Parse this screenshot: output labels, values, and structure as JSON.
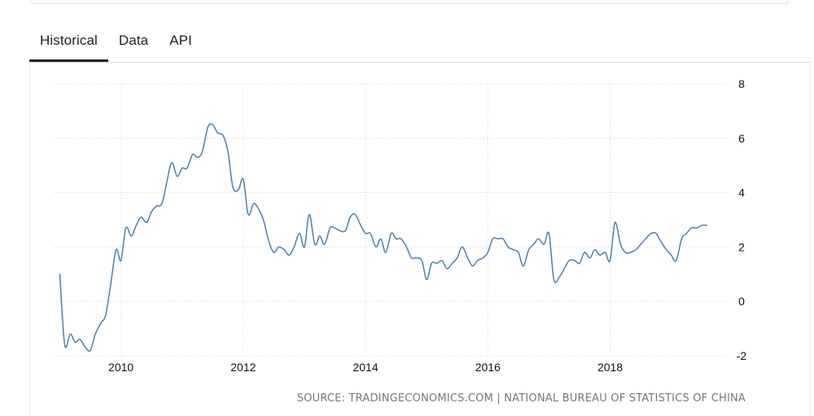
{
  "tabs": [
    {
      "label": "Historical",
      "active": true
    },
    {
      "label": "Data",
      "active": false
    },
    {
      "label": "API",
      "active": false
    }
  ],
  "source": "SOURCE: TRADINGECONOMICS.COM | NATIONAL BUREAU OF STATISTICS OF CHINA",
  "colors": {
    "line": "#4a7fb0",
    "grid": "#e6e6e6",
    "tab_active": "#222222"
  },
  "chart_data": {
    "type": "line",
    "title": "",
    "xlabel": "",
    "ylabel": "",
    "xlim": [
      2008.9,
      2019.95
    ],
    "ylim": [
      -2,
      8
    ],
    "x_ticks": [
      2010,
      2012,
      2014,
      2016,
      2018
    ],
    "y_ticks": [
      8,
      6,
      4,
      2,
      0,
      -2
    ],
    "grid": true,
    "y_axis_position": "right",
    "series": [
      {
        "values": [
          [
            2009.0,
            1.0
          ],
          [
            2009.08,
            -1.6
          ],
          [
            2009.17,
            -1.2
          ],
          [
            2009.25,
            -1.5
          ],
          [
            2009.33,
            -1.4
          ],
          [
            2009.42,
            -1.7
          ],
          [
            2009.5,
            -1.8
          ],
          [
            2009.58,
            -1.2
          ],
          [
            2009.67,
            -0.8
          ],
          [
            2009.75,
            -0.5
          ],
          [
            2009.83,
            0.6
          ],
          [
            2009.92,
            1.9
          ],
          [
            2010.0,
            1.5
          ],
          [
            2010.08,
            2.7
          ],
          [
            2010.17,
            2.4
          ],
          [
            2010.25,
            2.8
          ],
          [
            2010.33,
            3.1
          ],
          [
            2010.42,
            2.9
          ],
          [
            2010.5,
            3.3
          ],
          [
            2010.58,
            3.5
          ],
          [
            2010.67,
            3.6
          ],
          [
            2010.75,
            4.4
          ],
          [
            2010.83,
            5.1
          ],
          [
            2010.92,
            4.6
          ],
          [
            2011.0,
            4.9
          ],
          [
            2011.08,
            4.9
          ],
          [
            2011.17,
            5.4
          ],
          [
            2011.25,
            5.3
          ],
          [
            2011.33,
            5.5
          ],
          [
            2011.42,
            6.4
          ],
          [
            2011.5,
            6.5
          ],
          [
            2011.58,
            6.2
          ],
          [
            2011.67,
            6.1
          ],
          [
            2011.75,
            5.5
          ],
          [
            2011.83,
            4.2
          ],
          [
            2011.92,
            4.1
          ],
          [
            2012.0,
            4.5
          ],
          [
            2012.08,
            3.2
          ],
          [
            2012.17,
            3.6
          ],
          [
            2012.25,
            3.4
          ],
          [
            2012.33,
            3.0
          ],
          [
            2012.42,
            2.2
          ],
          [
            2012.5,
            1.8
          ],
          [
            2012.58,
            2.0
          ],
          [
            2012.67,
            1.9
          ],
          [
            2012.75,
            1.7
          ],
          [
            2012.83,
            2.0
          ],
          [
            2012.92,
            2.5
          ],
          [
            2013.0,
            2.0
          ],
          [
            2013.08,
            3.2
          ],
          [
            2013.17,
            2.1
          ],
          [
            2013.25,
            2.4
          ],
          [
            2013.33,
            2.1
          ],
          [
            2013.42,
            2.7
          ],
          [
            2013.5,
            2.7
          ],
          [
            2013.58,
            2.6
          ],
          [
            2013.67,
            2.6
          ],
          [
            2013.75,
            3.1
          ],
          [
            2013.83,
            3.2
          ],
          [
            2013.92,
            2.8
          ],
          [
            2014.0,
            2.5
          ],
          [
            2014.08,
            2.5
          ],
          [
            2014.17,
            2.0
          ],
          [
            2014.25,
            2.3
          ],
          [
            2014.33,
            1.8
          ],
          [
            2014.42,
            2.5
          ],
          [
            2014.5,
            2.3
          ],
          [
            2014.58,
            2.3
          ],
          [
            2014.67,
            2.0
          ],
          [
            2014.75,
            1.6
          ],
          [
            2014.83,
            1.6
          ],
          [
            2014.92,
            1.5
          ],
          [
            2015.0,
            0.8
          ],
          [
            2015.08,
            1.4
          ],
          [
            2015.17,
            1.4
          ],
          [
            2015.25,
            1.5
          ],
          [
            2015.33,
            1.2
          ],
          [
            2015.42,
            1.4
          ],
          [
            2015.5,
            1.6
          ],
          [
            2015.58,
            2.0
          ],
          [
            2015.67,
            1.6
          ],
          [
            2015.75,
            1.3
          ],
          [
            2015.83,
            1.5
          ],
          [
            2015.92,
            1.6
          ],
          [
            2016.0,
            1.8
          ],
          [
            2016.08,
            2.3
          ],
          [
            2016.17,
            2.3
          ],
          [
            2016.25,
            2.3
          ],
          [
            2016.33,
            2.0
          ],
          [
            2016.42,
            1.9
          ],
          [
            2016.5,
            1.8
          ],
          [
            2016.58,
            1.3
          ],
          [
            2016.67,
            1.9
          ],
          [
            2016.75,
            2.1
          ],
          [
            2016.83,
            2.3
          ],
          [
            2016.92,
            2.1
          ],
          [
            2017.0,
            2.5
          ],
          [
            2017.08,
            0.8
          ],
          [
            2017.17,
            0.9
          ],
          [
            2017.25,
            1.2
          ],
          [
            2017.33,
            1.5
          ],
          [
            2017.42,
            1.5
          ],
          [
            2017.5,
            1.4
          ],
          [
            2017.58,
            1.8
          ],
          [
            2017.67,
            1.6
          ],
          [
            2017.75,
            1.9
          ],
          [
            2017.83,
            1.7
          ],
          [
            2017.92,
            1.8
          ],
          [
            2018.0,
            1.5
          ],
          [
            2018.08,
            2.9
          ],
          [
            2018.17,
            2.1
          ],
          [
            2018.25,
            1.8
          ],
          [
            2018.33,
            1.8
          ],
          [
            2018.42,
            1.9
          ],
          [
            2018.5,
            2.1
          ],
          [
            2018.58,
            2.3
          ],
          [
            2018.67,
            2.5
          ],
          [
            2018.75,
            2.5
          ],
          [
            2018.83,
            2.2
          ],
          [
            2018.92,
            1.9
          ],
          [
            2019.0,
            1.7
          ],
          [
            2019.08,
            1.5
          ],
          [
            2019.17,
            2.3
          ],
          [
            2019.25,
            2.5
          ],
          [
            2019.33,
            2.7
          ],
          [
            2019.42,
            2.7
          ],
          [
            2019.5,
            2.8
          ],
          [
            2019.58,
            2.8
          ]
        ]
      }
    ]
  }
}
